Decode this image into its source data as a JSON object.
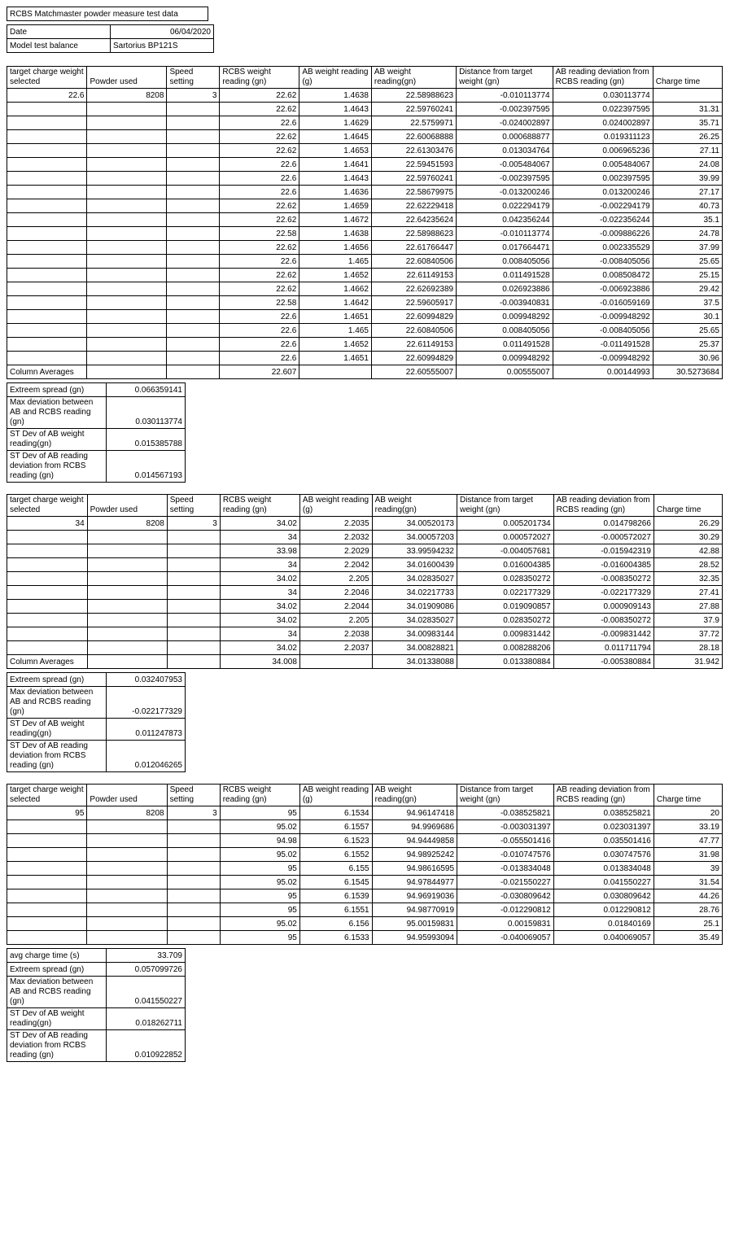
{
  "title": "RCBS Matchmaster powder measure test data",
  "date_label": "Date",
  "date_value": "06/04/2020",
  "model_label": "Model test balance",
  "model_value": "Sartorius BP121S",
  "headers": {
    "c1": "target charge weight selected",
    "c2": "Powder used",
    "c3": "Speed setting",
    "c4": "RCBS weight reading (gn)",
    "c5": "AB weight reading (g)",
    "c6": "AB weight reading(gn)",
    "c7": "Distance from target weight (gn)",
    "c8": "AB reading deviation from RCBS reading (gn)",
    "c9": "Charge time"
  },
  "col_avg_label": "Column Averages",
  "stats_labels": {
    "avg_charge": "avg charge time (s)",
    "es": "Extreem spread (gn)",
    "maxdev": "Max deviation between AB and RCBS reading (gn)",
    "stdev_ab": "ST Dev of AB weight reading(gn)",
    "stdev_dev": "ST Dev of AB reading deviation from RCBS reading (gn)"
  },
  "block1": {
    "target": "22.6",
    "powder": "8208",
    "speed": "3",
    "rows": [
      [
        "22.62",
        "1.4638",
        "22.58988623",
        "-0.010113774",
        "0.030113774",
        ""
      ],
      [
        "22.62",
        "1.4643",
        "22.59760241",
        "-0.002397595",
        "0.022397595",
        "31.31"
      ],
      [
        "22.6",
        "1.4629",
        "22.5759971",
        "-0.024002897",
        "0.024002897",
        "35.71"
      ],
      [
        "22.62",
        "1.4645",
        "22.60068888",
        "0.000688877",
        "0.019311123",
        "26.25"
      ],
      [
        "22.62",
        "1.4653",
        "22.61303476",
        "0.013034764",
        "0.006965236",
        "27.11"
      ],
      [
        "22.6",
        "1.4641",
        "22.59451593",
        "-0.005484067",
        "0.005484067",
        "24.08"
      ],
      [
        "22.6",
        "1.4643",
        "22.59760241",
        "-0.002397595",
        "0.002397595",
        "39.99"
      ],
      [
        "22.6",
        "1.4636",
        "22.58679975",
        "-0.013200246",
        "0.013200246",
        "27.17"
      ],
      [
        "22.62",
        "1.4659",
        "22.62229418",
        "0.022294179",
        "-0.002294179",
        "40.73"
      ],
      [
        "22.62",
        "1.4672",
        "22.64235624",
        "0.042356244",
        "-0.022356244",
        "35.1"
      ],
      [
        "22.58",
        "1.4638",
        "22.58988623",
        "-0.010113774",
        "-0.009886226",
        "24.78"
      ],
      [
        "22.62",
        "1.4656",
        "22.61766447",
        "0.017664471",
        "0.002335529",
        "37.99"
      ],
      [
        "22.6",
        "1.465",
        "22.60840506",
        "0.008405056",
        "-0.008405056",
        "25.65"
      ],
      [
        "22.62",
        "1.4652",
        "22.61149153",
        "0.011491528",
        "0.008508472",
        "25.15"
      ],
      [
        "22.62",
        "1.4662",
        "22.62692389",
        "0.026923886",
        "-0.006923886",
        "29.42"
      ],
      [
        "22.58",
        "1.4642",
        "22.59605917",
        "-0.003940831",
        "-0.016059169",
        "37.5"
      ],
      [
        "22.6",
        "1.4651",
        "22.60994829",
        "0.009948292",
        "-0.009948292",
        "30.1"
      ],
      [
        "22.6",
        "1.465",
        "22.60840506",
        "0.008405056",
        "-0.008405056",
        "25.65"
      ],
      [
        "22.6",
        "1.4652",
        "22.61149153",
        "0.011491528",
        "-0.011491528",
        "25.37"
      ],
      [
        "22.6",
        "1.4651",
        "22.60994829",
        "0.009948292",
        "-0.009948292",
        "30.96"
      ]
    ],
    "avg": [
      "22.607",
      "",
      "22.60555007",
      "0.00555007",
      "0.00144993",
      "30.5273684"
    ],
    "stats": {
      "es": "0.066359141",
      "maxdev": "0.030113774",
      "stdev_ab": "0.015385788",
      "stdev_dev": "0.014567193"
    }
  },
  "block2": {
    "target": "34",
    "powder": "8208",
    "speed": "3",
    "rows": [
      [
        "34.02",
        "2.2035",
        "34.00520173",
        "0.005201734",
        "0.014798266",
        "26.29"
      ],
      [
        "34",
        "2.2032",
        "34.00057203",
        "0.000572027",
        "-0.000572027",
        "30.29"
      ],
      [
        "33.98",
        "2.2029",
        "33.99594232",
        "-0.004057681",
        "-0.015942319",
        "42.88"
      ],
      [
        "34",
        "2.2042",
        "34.01600439",
        "0.016004385",
        "-0.016004385",
        "28.52"
      ],
      [
        "34.02",
        "2.205",
        "34.02835027",
        "0.028350272",
        "-0.008350272",
        "32.35"
      ],
      [
        "34",
        "2.2046",
        "34.02217733",
        "0.022177329",
        "-0.022177329",
        "27.41"
      ],
      [
        "34.02",
        "2.2044",
        "34.01909086",
        "0.019090857",
        "0.000909143",
        "27.88"
      ],
      [
        "34.02",
        "2.205",
        "34.02835027",
        "0.028350272",
        "-0.008350272",
        "37.9"
      ],
      [
        "34",
        "2.2038",
        "34.00983144",
        "0.009831442",
        "-0.009831442",
        "37.72"
      ],
      [
        "34.02",
        "2.2037",
        "34.00828821",
        "0.008288206",
        "0.011711794",
        "28.18"
      ]
    ],
    "avg": [
      "34.008",
      "",
      "34.01338088",
      "0.013380884",
      "-0.005380884",
      "31.942"
    ],
    "stats": {
      "es": "0.032407953",
      "maxdev": "-0.022177329",
      "stdev_ab": "0.011247873",
      "stdev_dev": "0.012046265"
    }
  },
  "block3": {
    "target": "95",
    "powder": "8208",
    "speed": "3",
    "rows": [
      [
        "95",
        "6.1534",
        "94.96147418",
        "-0.038525821",
        "0.038525821",
        "20"
      ],
      [
        "95.02",
        "6.1557",
        "94.9969686",
        "-0.003031397",
        "0.023031397",
        "33.19"
      ],
      [
        "94.98",
        "6.1523",
        "94.94449858",
        "-0.055501416",
        "0.035501416",
        "47.77"
      ],
      [
        "95.02",
        "6.1552",
        "94.98925242",
        "-0.010747576",
        "0.030747576",
        "31.98"
      ],
      [
        "95",
        "6.155",
        "94.98616595",
        "-0.013834048",
        "0.013834048",
        "39"
      ],
      [
        "95.02",
        "6.1545",
        "94.97844977",
        "-0.021550227",
        "0.041550227",
        "31.54"
      ],
      [
        "95",
        "6.1539",
        "94.96919036",
        "-0.030809642",
        "0.030809642",
        "44.26"
      ],
      [
        "95",
        "6.1551",
        "94.98770919",
        "-0.012290812",
        "0.012290812",
        "28.76"
      ],
      [
        "95.02",
        "6.156",
        "95.00159831",
        "0.00159831",
        "0.01840169",
        "25.1"
      ],
      [
        "95",
        "6.1533",
        "94.95993094",
        "-0.040069057",
        "0.040069057",
        "35.49"
      ]
    ],
    "stats": {
      "avg_charge": "33.709",
      "es": "0.057099726",
      "maxdev": "0.041550227",
      "stdev_ab": "0.018262711",
      "stdev_dev": "0.010922852"
    }
  }
}
